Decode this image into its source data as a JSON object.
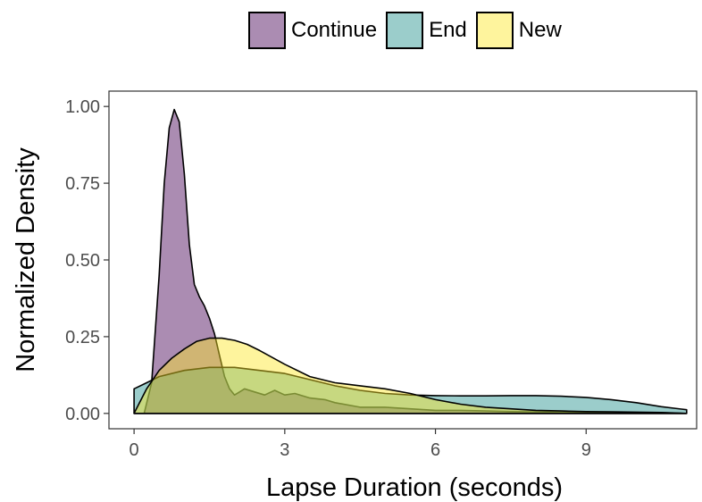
{
  "chart_data": {
    "type": "area",
    "title": "",
    "xlabel": "Lapse Duration (seconds)",
    "ylabel": "Normalized Density",
    "xlim": [
      -0.5,
      11.2
    ],
    "ylim": [
      -0.05,
      1.05
    ],
    "x_ticks": [
      0,
      3,
      6,
      9
    ],
    "x_tick_labels": [
      "0",
      "3",
      "6",
      "9"
    ],
    "y_ticks": [
      0,
      0.25,
      0.5,
      0.75,
      1.0
    ],
    "y_tick_labels": [
      "0.00",
      "0.25",
      "0.50",
      "0.75",
      "1.00"
    ],
    "grid": false,
    "legend_position": "top",
    "series": [
      {
        "name": "Continue",
        "color": "#440154",
        "x": [
          0,
          0.2,
          0.35,
          0.5,
          0.6,
          0.7,
          0.8,
          0.9,
          1.0,
          1.1,
          1.2,
          1.3,
          1.4,
          1.5,
          1.6,
          1.7,
          1.8,
          1.9,
          2.0,
          2.1,
          2.2,
          2.4,
          2.6,
          2.8,
          3.0,
          3.2,
          3.5,
          3.8,
          4.0,
          4.5,
          5.0,
          5.5,
          6.0,
          6.5,
          7.0,
          7.5,
          8.0,
          8.5,
          9.0,
          9.5,
          10.0,
          10.5,
          11.0
        ],
        "values": [
          0.0,
          0.0,
          0.1,
          0.45,
          0.75,
          0.93,
          0.99,
          0.95,
          0.78,
          0.55,
          0.42,
          0.38,
          0.35,
          0.31,
          0.26,
          0.19,
          0.12,
          0.08,
          0.06,
          0.07,
          0.08,
          0.07,
          0.06,
          0.075,
          0.06,
          0.065,
          0.05,
          0.045,
          0.035,
          0.02,
          0.02,
          0.015,
          0.01,
          0.01,
          0.008,
          0.006,
          0.005,
          0.004,
          0.003,
          0.003,
          0.002,
          0.002,
          0.0
        ]
      },
      {
        "name": "End",
        "color": "#21908C",
        "x": [
          0,
          0.25,
          0.5,
          1.0,
          1.5,
          2.0,
          2.5,
          3.0,
          3.5,
          4.0,
          4.5,
          5.0,
          5.5,
          6.0,
          6.5,
          7.0,
          7.5,
          8.0,
          8.5,
          9.0,
          9.5,
          10.0,
          10.5,
          11.0
        ],
        "values": [
          0.08,
          0.1,
          0.12,
          0.14,
          0.15,
          0.15,
          0.14,
          0.13,
          0.11,
          0.09,
          0.075,
          0.065,
          0.06,
          0.058,
          0.057,
          0.057,
          0.058,
          0.058,
          0.056,
          0.052,
          0.045,
          0.035,
          0.022,
          0.012
        ]
      },
      {
        "name": "New",
        "color": "#FDE725",
        "x": [
          0,
          0.25,
          0.5,
          0.75,
          1.0,
          1.25,
          1.5,
          1.75,
          2.0,
          2.25,
          2.5,
          3.0,
          3.5,
          4.0,
          4.5,
          5.0,
          5.5,
          6.0,
          6.5,
          7.0,
          7.5,
          8.0,
          8.5,
          9.0,
          9.5,
          10.0,
          10.5,
          11.0
        ],
        "values": [
          0.0,
          0.08,
          0.14,
          0.18,
          0.21,
          0.235,
          0.245,
          0.245,
          0.238,
          0.225,
          0.205,
          0.16,
          0.12,
          0.1,
          0.09,
          0.08,
          0.065,
          0.045,
          0.03,
          0.02,
          0.015,
          0.01,
          0.008,
          0.006,
          0.005,
          0.004,
          0.003,
          0.0
        ]
      }
    ]
  }
}
